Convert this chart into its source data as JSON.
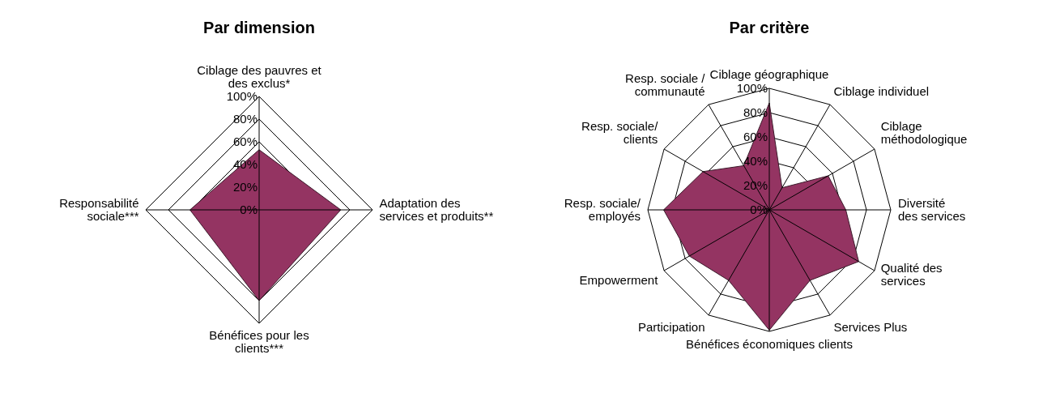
{
  "chart_data": [
    {
      "type": "radar",
      "title": "Par dimension",
      "categories": [
        "Ciblage des pauvres et\ndes exclus*",
        "Adaptation des\nservices et produits**",
        "Bénéfices pour les\nclients***",
        "Responsabilité\nsociale***"
      ],
      "series": [
        {
          "color": "#943462",
          "values": [
            53,
            72,
            80,
            61
          ]
        }
      ],
      "ylim": [
        0,
        100
      ],
      "yticks": [
        {
          "value": 0,
          "label": "0%"
        },
        {
          "value": 20,
          "label": "20%"
        },
        {
          "value": 40,
          "label": "40%"
        },
        {
          "value": 60,
          "label": "60%"
        },
        {
          "value": 80,
          "label": "80%"
        },
        {
          "value": 100,
          "label": "100%"
        }
      ],
      "grid": true
    },
    {
      "type": "radar",
      "title": "Par critère",
      "categories": [
        "Ciblage géographique",
        "Ciblage individuel",
        "Ciblage\nméthodologique",
        "Diversité\ndes services",
        "Qualité des\nservices",
        "Services Plus",
        "Bénéfices économiques clients",
        "Participation",
        "Empowerment",
        "Resp. sociale/\nemployés",
        "Resp. sociale/\nclients",
        "Resp. sociale /\ncommunauté"
      ],
      "series": [
        {
          "color": "#943462",
          "values": [
            88,
            21,
            56,
            63,
            85,
            67,
            99,
            67,
            76,
            87,
            63,
            42
          ]
        }
      ],
      "ylim": [
        0,
        100
      ],
      "yticks": [
        {
          "value": 0,
          "label": "0%"
        },
        {
          "value": 20,
          "label": "20%"
        },
        {
          "value": 40,
          "label": "40%"
        },
        {
          "value": 60,
          "label": "60%"
        },
        {
          "value": 80,
          "label": "80%"
        },
        {
          "value": 100,
          "label": "100%"
        }
      ],
      "grid": true
    }
  ]
}
